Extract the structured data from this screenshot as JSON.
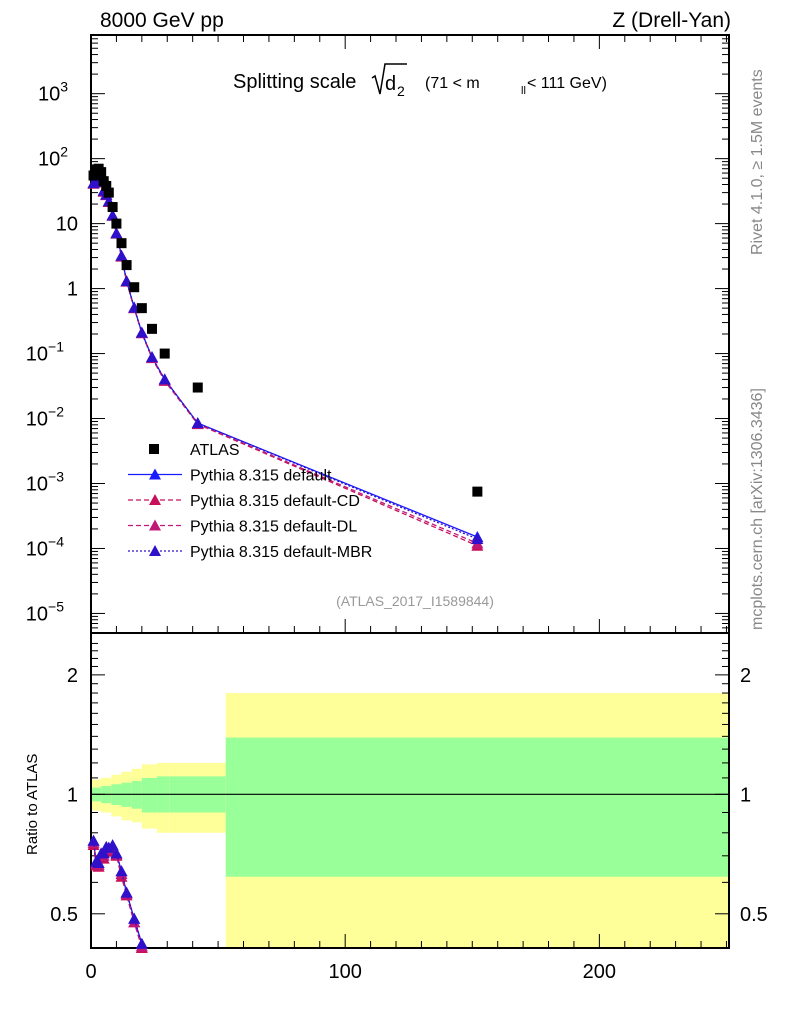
{
  "header": {
    "left": "8000 GeV pp",
    "right": "Z (Drell-Yan)"
  },
  "side_labels": {
    "rivet": "Rivet 4.1.0, ≥ 1.5M events",
    "mcplots": "mcplots.cern.ch [arXiv:1306.3436]"
  },
  "title": {
    "text": "Splitting scale",
    "d": "d",
    "d_sub": "2",
    "range_pre": "(71 < m",
    "range_sub": "ll",
    "range_post": " < 111 GeV)"
  },
  "analysis_id": "(ATLAS_2017_I1589844)",
  "colors": {
    "default": "#1a1aff",
    "cd": "#c8105a",
    "dl": "#c01878",
    "mbr": "#3010c8",
    "yellow": "#ffff99",
    "green": "#99ff99"
  },
  "chart_data": [
    {
      "type": "scatter",
      "yscale": "log",
      "xlim": [
        0,
        251
      ],
      "ylim": [
        5e-06,
        8000
      ],
      "y_ticks": [
        {
          "v": 1000,
          "l": "10",
          "e": "3"
        },
        {
          "v": 100,
          "l": "10",
          "e": "2"
        },
        {
          "v": 10,
          "l": "10",
          "e": ""
        },
        {
          "v": 1,
          "l": "1",
          "e": ""
        },
        {
          "v": 0.1,
          "l": "10",
          "e": "−1"
        },
        {
          "v": 0.01,
          "l": "10",
          "e": "−2"
        },
        {
          "v": 0.001,
          "l": "10",
          "e": "−3"
        },
        {
          "v": 0.0001,
          "l": "10",
          "e": "−4"
        },
        {
          "v": 1e-05,
          "l": "10",
          "e": "−5"
        }
      ],
      "x": [
        1,
        2,
        3,
        4,
        5,
        6,
        7,
        8.5,
        10,
        12,
        14,
        17,
        20,
        24,
        29,
        42,
        152
      ],
      "series": [
        {
          "name": "ATLAS",
          "key": "data",
          "values": [
            55,
            68,
            70,
            62,
            45,
            38,
            30,
            18,
            10,
            5,
            2.3,
            1.05,
            0.5,
            0.24,
            0.1,
            0.03,
            0.00075
          ]
        },
        {
          "name": "Pythia 8.315 default",
          "key": "default",
          "style": "solid",
          "values": [
            42,
            46,
            47,
            44,
            32,
            28,
            22,
            13.4,
            7.1,
            3.2,
            1.3,
            0.51,
            0.21,
            0.088,
            0.04,
            0.0085,
            0.00015
          ]
        },
        {
          "name": "Pythia 8.315 default-CD",
          "key": "cd",
          "style": "dashed",
          "values": [
            41,
            45,
            46,
            43,
            31,
            27.5,
            21.5,
            13.2,
            7.0,
            3.1,
            1.28,
            0.5,
            0.205,
            0.085,
            0.038,
            0.0082,
            0.00011
          ]
        },
        {
          "name": "Pythia 8.315 default-DL",
          "key": "dl",
          "style": "dashed",
          "values": [
            41.5,
            45.5,
            46.5,
            43.5,
            31.5,
            27.8,
            21.8,
            13.3,
            7.05,
            3.15,
            1.29,
            0.5,
            0.207,
            0.086,
            0.039,
            0.0083,
            0.00012
          ]
        },
        {
          "name": "Pythia 8.315 default-MBR",
          "key": "mbr",
          "style": "dotted",
          "values": [
            42,
            46,
            47,
            44,
            32,
            28,
            22,
            13.4,
            7.1,
            3.2,
            1.3,
            0.51,
            0.21,
            0.088,
            0.04,
            0.0085,
            0.00014
          ]
        }
      ]
    },
    {
      "type": "line",
      "yscale": "log",
      "ylabel": "Ratio to ATLAS",
      "xlim": [
        0,
        251
      ],
      "ylim": [
        0.41,
        2.55
      ],
      "y_ticks": [
        {
          "v": 2,
          "l": "2"
        },
        {
          "v": 1,
          "l": "1"
        },
        {
          "v": 0.5,
          "l": "0.5"
        }
      ],
      "x_ticks": [
        {
          "v": 0,
          "l": "0"
        },
        {
          "v": 100,
          "l": "100"
        },
        {
          "v": 200,
          "l": "200"
        }
      ],
      "band_edges": [
        0,
        4,
        8,
        12,
        16,
        20,
        26,
        31,
        53,
        251
      ],
      "yellow_hi": [
        1.09,
        1.1,
        1.12,
        1.14,
        1.16,
        1.19,
        1.2,
        1.2,
        1.8
      ],
      "yellow_lo": [
        0.91,
        0.9,
        0.88,
        0.86,
        0.85,
        0.82,
        0.8,
        0.8,
        0.41
      ],
      "green_hi": [
        1.04,
        1.05,
        1.06,
        1.07,
        1.08,
        1.1,
        1.11,
        1.11,
        1.39
      ],
      "green_lo": [
        0.96,
        0.95,
        0.94,
        0.93,
        0.92,
        0.9,
        0.9,
        0.9,
        0.62
      ]
    }
  ]
}
